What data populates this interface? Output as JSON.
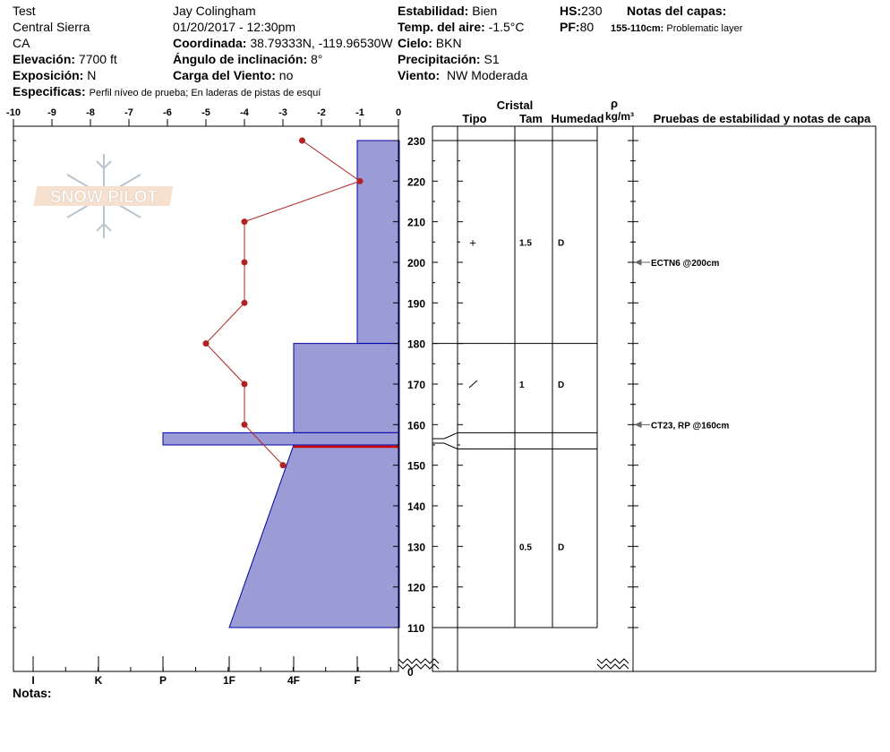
{
  "header": {
    "name": "Test",
    "range": "Central Sierra",
    "state": "CA",
    "elev_label": "Elevación:",
    "elev": "7700 ft",
    "aspect_label": "Exposición:",
    "aspect": "N",
    "observer": "Jay Colingham",
    "datetime": "01/20/2017 - 12:30pm",
    "coord_label": "Coordinada:",
    "coord": "38.79333N, -119.96530W",
    "slope_label": "Ángulo de inclinación:",
    "slope": "8°",
    "wind_load_label": "Carga del Viento:",
    "wind_load": "no",
    "stability_label": "Estabilidad:",
    "stability": "Bien",
    "air_temp_label": "Temp. del aire:",
    "air_temp": "-1.5°C",
    "sky_label": "Cielo:",
    "sky": "BKN",
    "precip_label": "Precipitación:",
    "precip": "S1",
    "wind_label": "Viento:",
    "wind": "NW Moderada",
    "hs_label": "HS:",
    "hs": "230",
    "pf_label": "PF:",
    "pf": "80",
    "layer_notes_label": "Notas del capas:",
    "layer_note_range": "155-110cm:",
    "layer_note": "Problematic layer",
    "specifics_label": "Especificas:",
    "specifics": "Perfil níveo de prueba; En laderas de pistas de esquí",
    "notes_label": "Notas:"
  },
  "columns": {
    "crystal": "Cristal",
    "type": "Tipo",
    "size": "Tam",
    "moisture": "Humedad",
    "rho": "ρ",
    "density_unit": "kg/m³",
    "tests": "Pruebas de estabilidad y notas de capa"
  },
  "logo_text": "SNOW PILOT",
  "colors": {
    "hardness_fill": "#9b9bd6",
    "hardness_stroke": "#0000aa",
    "temp": "#b22222",
    "concern": "#cc0000"
  },
  "chart_data": {
    "type": "line",
    "temp_axis": {
      "range": [
        -10,
        0
      ],
      "ticks": [
        "-10",
        "-9",
        "-8",
        "-7",
        "-6",
        "-5",
        "-4",
        "-3",
        "-2",
        "-1",
        "0"
      ]
    },
    "hardness_axis": {
      "ticks": [
        "I",
        "K",
        "P",
        "1F",
        "4F",
        "F"
      ]
    },
    "depth_axis": {
      "range": [
        110,
        230
      ],
      "ticks": [
        "230",
        "220",
        "210",
        "200",
        "190",
        "180",
        "170",
        "160",
        "150",
        "140",
        "130",
        "120",
        "110"
      ],
      "zero_label": "0"
    },
    "temperature_profile": [
      [
        230,
        -2.5
      ],
      [
        220,
        -1
      ],
      [
        210,
        -4
      ],
      [
        200,
        -4
      ],
      [
        190,
        -4
      ],
      [
        180,
        -5
      ],
      [
        170,
        -4
      ],
      [
        160,
        -4
      ],
      [
        150,
        -3
      ]
    ],
    "hardness_layers": [
      {
        "top": 230,
        "bottom": 180,
        "hardness_top": "F",
        "hardness_bottom": "F"
      },
      {
        "top": 180,
        "bottom": 158,
        "hardness_top": "4F",
        "hardness_bottom": "4F"
      },
      {
        "top": 158,
        "bottom": 155,
        "hardness_top": "P",
        "hardness_bottom": "P"
      },
      {
        "top": 155,
        "bottom": 110,
        "hardness_top": "4F",
        "hardness_bottom": "1F"
      }
    ],
    "layer_of_concern_depth": 155,
    "layers": [
      {
        "depth": 205,
        "type": "+",
        "size": "1.5",
        "moisture": "D"
      },
      {
        "depth": 170,
        "type": "/",
        "size": "1",
        "moisture": "D"
      },
      {
        "depth": 130,
        "type": "",
        "size": "0.5",
        "moisture": "D"
      }
    ],
    "tests": [
      {
        "depth": 200,
        "label": "ECTN6 @200cm"
      },
      {
        "depth": 160,
        "label": "CT23, RP @160cm"
      }
    ]
  }
}
